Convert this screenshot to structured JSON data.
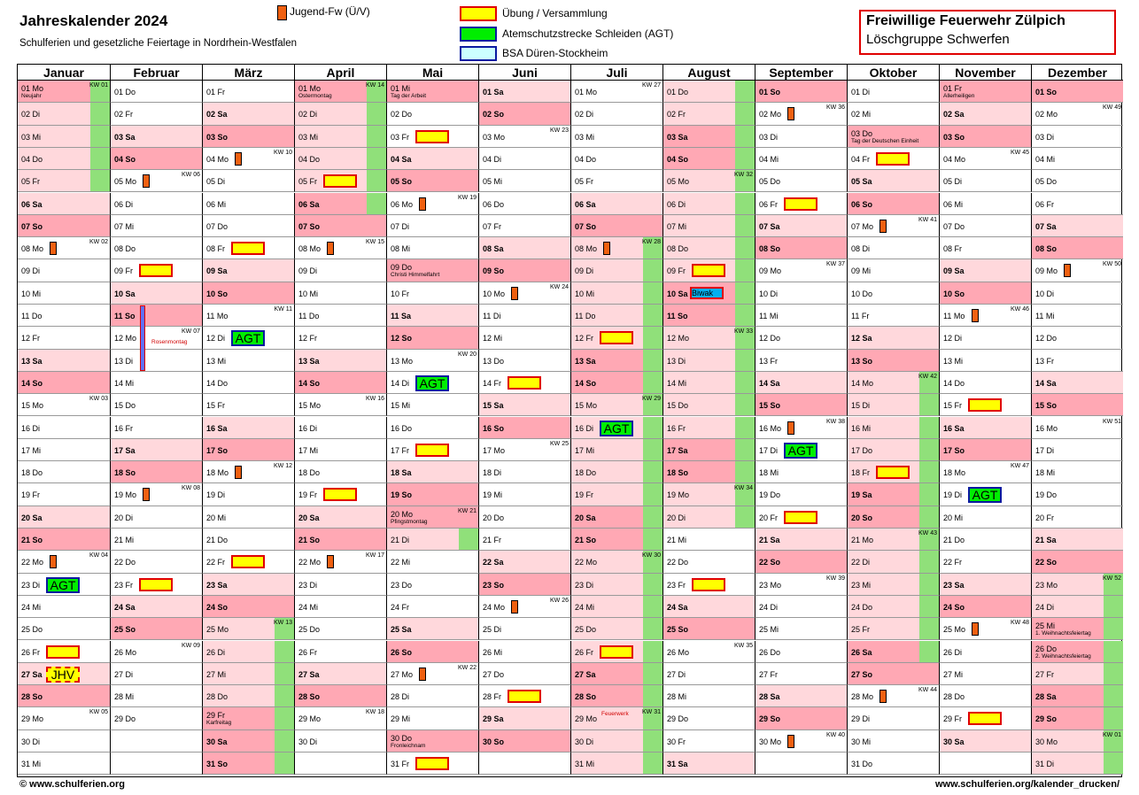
{
  "header": {
    "title": "Jahreskalender 2024",
    "subtitle": "Schulferien und gesetzliche Feiertage in Nordrhein-Westfalen",
    "org_name": "Freiwillige Feuerwehr Zülpich",
    "org_sub": "Löschgruppe Schwerfen"
  },
  "legend": {
    "jugend": "Jugend-Fw (Ü/V)",
    "uebung": "Übung / Versammlung",
    "agt": "Atemschutzstrecke Schleiden (AGT)",
    "bsa": "BSA Düren-Stockheim"
  },
  "colors": {
    "holiday": "#ffa8b4",
    "ferien": "#ffd8dc",
    "strip": "#90e07a",
    "uebung": "#ffff00",
    "jugend": "#f06010",
    "agt": "#00ee00"
  },
  "labels": {
    "agt": "AGT",
    "biwak": "Biwak",
    "jhv": "JHV",
    "rosenmontag": "Rosenmontag",
    "feuerwerk": "Feuerwerk"
  },
  "months": [
    {
      "name": "Januar",
      "start": 1,
      "days": 31
    },
    {
      "name": "Februar",
      "start": 4,
      "days": 29
    },
    {
      "name": "März",
      "start": 5,
      "days": 31
    },
    {
      "name": "April",
      "start": 1,
      "days": 30
    },
    {
      "name": "Mai",
      "start": 3,
      "days": 31
    },
    {
      "name": "Juni",
      "start": 6,
      "days": 30
    },
    {
      "name": "Juli",
      "start": 1,
      "days": 31
    },
    {
      "name": "August",
      "start": 4,
      "days": 31
    },
    {
      "name": "September",
      "start": 0,
      "days": 30
    },
    {
      "name": "Oktober",
      "start": 2,
      "days": 31
    },
    {
      "name": "November",
      "start": 5,
      "days": 30
    },
    {
      "name": "Dezember",
      "start": 0,
      "days": 31
    }
  ],
  "weekdays": [
    "So",
    "Mo",
    "Di",
    "Mi",
    "Do",
    "Fr",
    "Sa"
  ],
  "holidays": {
    "1-1": "Neujahr",
    "3-29": "Karfreitag",
    "4-1": "Ostermontag",
    "5-1": "Tag der Arbeit",
    "5-9": "Christi Himmelfahrt",
    "5-20": "Pfingstmontag",
    "5-30": "Fronleichnam",
    "10-3": "Tag der Deutschen Einheit",
    "11-1": "Allerheiligen",
    "12-25": "1. Weihnachtsfeiertag",
    "12-26": "2. Weihnachtsfeiertag"
  },
  "ferien": [
    [
      1,
      1,
      1,
      5
    ],
    [
      3,
      25,
      4,
      6
    ],
    [
      5,
      21,
      5,
      21
    ],
    [
      7,
      8,
      8,
      20
    ],
    [
      10,
      14,
      10,
      26
    ],
    [
      12,
      23,
      12,
      31
    ]
  ],
  "kw_labels": {
    "1-1": "KW 01",
    "1-8": "KW 02",
    "1-15": "KW 03",
    "1-22": "KW 04",
    "1-29": "KW 05",
    "2-5": "KW 06",
    "2-12": "KW 07",
    "2-19": "KW 08",
    "2-26": "KW 09",
    "3-4": "KW 10",
    "3-11": "KW 11",
    "3-18": "KW 12",
    "3-25": "KW 13",
    "4-1": "KW 14",
    "4-8": "KW 15",
    "4-15": "KW 16",
    "4-22": "KW 17",
    "4-29": "KW 18",
    "5-6": "KW 19",
    "5-13": "KW 20",
    "5-20": "KW 21",
    "5-27": "KW 22",
    "6-3": "KW 23",
    "6-10": "KW 24",
    "6-17": "KW 25",
    "6-24": "KW 26",
    "7-1": "KW 27",
    "7-8": "KW 28",
    "7-15": "KW 29",
    "7-22": "KW 30",
    "7-29": "KW 31",
    "8-5": "KW 32",
    "8-12": "KW 33",
    "8-19": "KW 34",
    "8-26": "KW 35",
    "9-2": "KW 36",
    "9-9": "KW 37",
    "9-16": "KW 38",
    "9-23": "KW 39",
    "9-30": "KW 40",
    "10-7": "KW 41",
    "10-14": "KW 42",
    "10-21": "KW 43",
    "10-28": "KW 44",
    "11-4": "KW 45",
    "11-11": "KW 46",
    "11-18": "KW 47",
    "11-25": "KW 48",
    "12-2": "KW 49",
    "12-9": "KW 50",
    "12-16": "KW 51",
    "12-23": "KW 52",
    "12-30": "KW 01"
  },
  "events": {
    "jugend": [
      "1-8",
      "1-22",
      "2-5",
      "2-19",
      "3-4",
      "3-18",
      "4-8",
      "4-22",
      "5-6",
      "5-27",
      "6-10",
      "6-24",
      "7-8",
      "9-2",
      "9-16",
      "9-30",
      "10-7",
      "10-28",
      "11-11",
      "11-25",
      "12-9"
    ],
    "uebung": [
      "1-26",
      "2-9",
      "2-23",
      "3-8",
      "3-22",
      "4-5",
      "4-19",
      "5-3",
      "5-17",
      "5-31",
      "6-14",
      "6-28",
      "7-12",
      "7-26",
      "8-9",
      "8-23",
      "9-6",
      "9-20",
      "10-4",
      "10-18",
      "11-15",
      "11-29"
    ],
    "agt": [
      "1-23",
      "3-12",
      "5-14",
      "7-16",
      "9-17",
      "11-19"
    ],
    "biwak": [
      "8-10"
    ],
    "jhv": [
      "1-27"
    ]
  },
  "footer": {
    "left": "© www.schulferien.org",
    "right": "www.schulferien.org/kalender_drucken/"
  }
}
